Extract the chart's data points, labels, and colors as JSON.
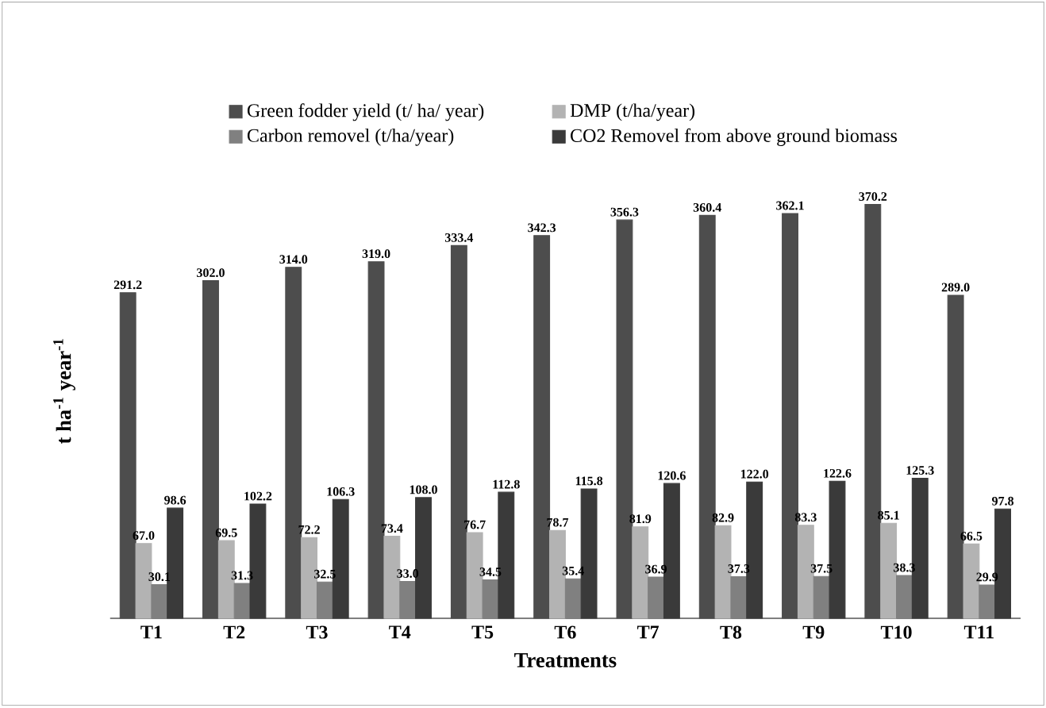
{
  "chart_data": {
    "type": "bar",
    "xlabel": "Treatments",
    "ylabel": "t ha$^{-1}$ year$^{-1}$",
    "categories": [
      "T1",
      "T2",
      "T3",
      "T4",
      "T5",
      "T6",
      "T7",
      "T8",
      "T9",
      "T10",
      "T11"
    ],
    "series": [
      {
        "name": "Green fodder yield (t/ ha/ year)",
        "color": "#4d4d4d",
        "values": [
          291.2,
          302.0,
          314.0,
          319.0,
          333.4,
          342.3,
          356.3,
          360.4,
          362.1,
          370.2,
          289.0
        ],
        "value_labels": [
          "291.2",
          "302.0",
          "314.0",
          "319.0",
          "333.4",
          "342.3",
          "356.3",
          "360.4",
          "362.1",
          "370.2",
          "289.0"
        ]
      },
      {
        "name": "DMP (t/ha/year)",
        "color": "#b3b3b3",
        "values": [
          67.0,
          69.5,
          72.2,
          73.4,
          76.7,
          78.7,
          81.9,
          82.9,
          83.3,
          85.1,
          66.5
        ],
        "value_labels": [
          "67.0",
          "69.5",
          "72.2",
          "73.4",
          "76.7",
          "78.7",
          "81.9",
          "82.9",
          "83.3",
          "85.1",
          "66.5"
        ]
      },
      {
        "name": "Carbon removel (t/ha/year)",
        "color": "#808080",
        "values": [
          30.1,
          31.3,
          32.5,
          33.0,
          34.5,
          35.4,
          36.9,
          37.3,
          37.5,
          38.3,
          29.9
        ],
        "value_labels": [
          "30.1",
          "31.3",
          "32.5",
          "33.0",
          "34.5",
          "35.4",
          "36.9",
          "37.3",
          "37.5",
          "38.3",
          "29.9"
        ]
      },
      {
        "name": "CO2 Removel from above ground biomass",
        "color": "#3a3a3a",
        "values": [
          98.6,
          102.2,
          106.3,
          108.0,
          112.8,
          115.8,
          120.6,
          122.0,
          122.6,
          125.3,
          97.8
        ],
        "value_labels": [
          "98.6",
          "102.2",
          "106.3",
          "108.0",
          "112.8",
          "115.8",
          "120.6",
          "122.0",
          "122.6",
          "125.3",
          "97.8"
        ]
      }
    ],
    "legend": "top"
  }
}
